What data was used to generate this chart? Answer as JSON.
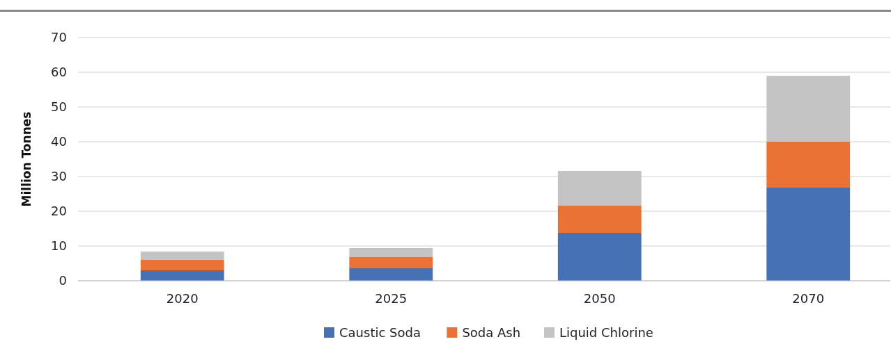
{
  "chart_data": {
    "type": "bar",
    "stacked": true,
    "ylabel": "Million Tonnes",
    "categories": [
      "2020",
      "2025",
      "2050",
      "2070"
    ],
    "series": [
      {
        "name": "Caustic Soda",
        "color": "#4672b5",
        "values": [
          3,
          3.6,
          13.8,
          26.8
        ]
      },
      {
        "name": "Soda Ash",
        "color": "#eb7235",
        "values": [
          3,
          3.2,
          7.8,
          13.2
        ]
      },
      {
        "name": "Liquid Chlorine",
        "color": "#c4c4c4",
        "values": [
          2.4,
          2.6,
          10,
          19
        ]
      }
    ],
    "ylim": [
      0,
      70
    ],
    "yticks": [
      0,
      10,
      20,
      30,
      40,
      50,
      60,
      70
    ],
    "grid": "y",
    "legend": "bottom"
  }
}
